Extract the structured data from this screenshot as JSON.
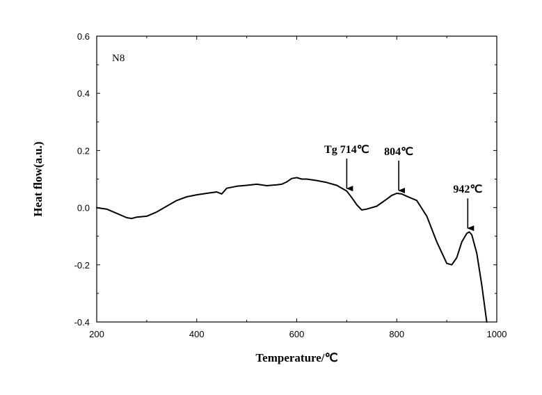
{
  "chart_data": {
    "type": "line",
    "sample_label": "N8",
    "xlabel": "Temperature/℃",
    "ylabel": "Heat flow(a.u.)",
    "xlim": [
      200,
      1000
    ],
    "ylim": [
      -0.4,
      0.6
    ],
    "x_ticks": [
      200,
      400,
      600,
      800,
      1000
    ],
    "x_tick_labels": [
      "200",
      "400",
      "600",
      "800",
      "1000"
    ],
    "y_ticks": [
      0.6,
      0.4,
      0.2,
      0.0,
      -0.2,
      -0.4
    ],
    "y_tick_labels": [
      "0.6",
      "0.4",
      "0.2",
      "0.0",
      "-0.2",
      "-0.4"
    ],
    "grid": false,
    "series": [
      {
        "x": [
          200,
          220,
          240,
          260,
          270,
          280,
          300,
          320,
          340,
          360,
          380,
          400,
          420,
          440,
          450,
          460,
          480,
          500,
          520,
          540,
          560,
          570,
          580,
          590,
          600,
          610,
          620,
          640,
          660,
          680,
          700,
          710,
          720,
          730,
          740,
          760,
          780,
          790,
          800,
          810,
          820,
          840,
          860,
          880,
          900,
          910,
          920,
          930,
          940,
          945,
          950,
          960,
          970,
          980
        ],
        "y": [
          0.0,
          -0.005,
          -0.02,
          -0.035,
          -0.038,
          -0.033,
          -0.03,
          -0.015,
          0.005,
          0.025,
          0.038,
          0.045,
          0.05,
          0.055,
          0.048,
          0.068,
          0.075,
          0.078,
          0.082,
          0.077,
          0.08,
          0.082,
          0.09,
          0.102,
          0.105,
          0.1,
          0.1,
          0.095,
          0.088,
          0.078,
          0.058,
          0.035,
          0.01,
          -0.008,
          -0.005,
          0.005,
          0.03,
          0.043,
          0.05,
          0.048,
          0.04,
          0.025,
          -0.03,
          -0.12,
          -0.195,
          -0.2,
          -0.175,
          -0.12,
          -0.09,
          -0.085,
          -0.095,
          -0.16,
          -0.27,
          -0.4
        ]
      }
    ],
    "annotations": [
      {
        "text": "Tg 714℃",
        "x": 700,
        "y": 0.062
      },
      {
        "text": "804℃",
        "x": 804,
        "y": 0.055
      },
      {
        "text": "942℃",
        "x": 942,
        "y": -0.077
      }
    ]
  }
}
